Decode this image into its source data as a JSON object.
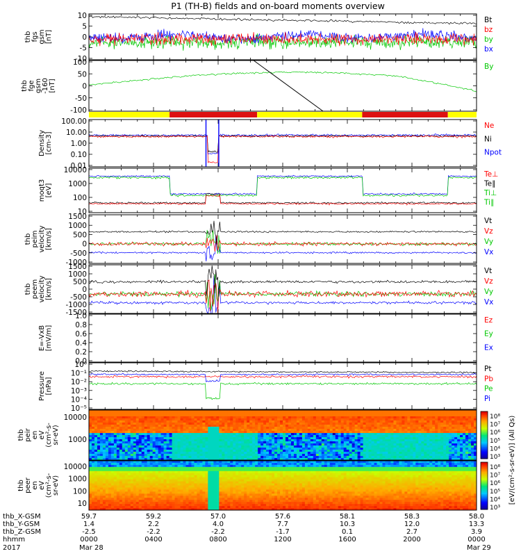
{
  "title": "P1 (TH-B) fields and on-board moments overview",
  "chart_data": {
    "type": "line",
    "title": "P1 (TH-B) fields and on-board moments overview",
    "x_time_labels": [
      "0000",
      "0400",
      "0800",
      "1200",
      "1600",
      "2000",
      "0000"
    ],
    "date_labels": [
      "Mar 28",
      "Mar 29"
    ],
    "year": "2017",
    "ephemeris": {
      "labels": [
        "thb_X-GSM",
        "thb_Y-GSM",
        "thb_Z-GSM",
        "hhmm",
        "2017"
      ],
      "x_gsm": [
        "59.7",
        "59.2",
        "57.0",
        "57.6",
        "58.1",
        "58.3",
        "58.0"
      ],
      "y_gsm": [
        "1.4",
        "2.2",
        "4.0",
        "7.7",
        "10.3",
        "12.0",
        "13.3"
      ],
      "z_gsm": [
        "-2.5",
        "-2.2",
        "-2.2",
        "-1.7",
        "0.1",
        "2.7",
        "3.9"
      ]
    },
    "panels": [
      {
        "id": "fgs",
        "ylabel": [
          "thb",
          "fgs",
          "gsm",
          "[nT]"
        ],
        "yticks": [
          "10",
          "5",
          "0",
          "-5",
          "-10"
        ],
        "legend": [
          "Bt",
          "bz",
          "by",
          "bx"
        ],
        "legend_colors": [
          "#000000",
          "#ff0000",
          "#00c800",
          "#0000ff"
        ]
      },
      {
        "id": "fge",
        "ylabel": [
          "thb",
          "fge",
          "gsm",
          "-160",
          "[nT]"
        ],
        "yticks": [
          "100",
          "50",
          "0",
          "-50",
          "-100"
        ],
        "legend": [
          "By"
        ],
        "legend_colors": [
          "#00c800"
        ]
      },
      {
        "id": "density",
        "ylabel": [
          "Density",
          "[cm-3]"
        ],
        "yticks": [
          "100.00",
          "10.00",
          "1.00",
          "0.10",
          "0.01"
        ],
        "legend": [
          "Ne",
          "Ni",
          "Npot"
        ],
        "legend_colors": [
          "#ff0000",
          "#000000",
          "#0000ff"
        ]
      },
      {
        "id": "temp",
        "ylabel": [
          "moqt3",
          "[eV]"
        ],
        "yticks": [
          "10000",
          "1000",
          "100",
          "10"
        ],
        "legend": [
          "Te⊥",
          "Te∥",
          "Ti⊥",
          "Ti∥"
        ],
        "legend_colors": [
          "#ff0000",
          "#000000",
          "#00c800",
          "#00c800"
        ]
      },
      {
        "id": "peim",
        "ylabel": [
          "thb",
          "peim",
          "velocity",
          "[km/s]"
        ],
        "yticks": [
          "1500",
          "1000",
          "500",
          "0",
          "-500",
          "-1000"
        ],
        "legend": [
          "Vt",
          "Vz",
          "Vy",
          "Vx"
        ],
        "legend_colors": [
          "#000000",
          "#ff0000",
          "#00c800",
          "#0000ff"
        ]
      },
      {
        "id": "peem",
        "ylabel": [
          "thb",
          "peem",
          "velocity",
          "[km/s]"
        ],
        "yticks": [
          "1500",
          "1000",
          "500",
          "0",
          "-500",
          "-1000",
          "-1500"
        ],
        "legend": [
          "Vt",
          "Vz",
          "Vy",
          "Vx"
        ],
        "legend_colors": [
          "#000000",
          "#ff0000",
          "#00c800",
          "#0000ff"
        ]
      },
      {
        "id": "efield",
        "ylabel": [
          "E=-VxB",
          "[mV/m]"
        ],
        "yticks": [
          "1.0",
          "0.8",
          "0.6",
          "0.4",
          "0.2",
          "0.0"
        ],
        "legend": [
          "Ez",
          "Ey",
          "Ex"
        ],
        "legend_colors": [
          "#ff0000",
          "#00c800",
          "#0000ff"
        ]
      },
      {
        "id": "pressure",
        "ylabel": [
          "Pressure",
          "[nPa]"
        ],
        "yticks": [
          "10⁰",
          "10⁻¹",
          "10⁻²",
          "10⁻³",
          "10⁻⁴",
          "10⁻⁵"
        ],
        "legend": [
          "Pt",
          "Pb",
          "Pe",
          "Pi"
        ],
        "legend_colors": [
          "#000000",
          "#ff0000",
          "#00c800",
          "#0000ff"
        ]
      },
      {
        "id": "peir",
        "ylabel": [
          "thb",
          "peir",
          "en",
          "eV",
          "(cm²-s-",
          "sr-eV)"
        ],
        "yticks": [
          "10000",
          "1000"
        ],
        "legend": [],
        "legend_colors": []
      },
      {
        "id": "peer",
        "ylabel": [
          "thb",
          "peer",
          "en",
          "eV",
          "(cm²-s-",
          "sr-eV)"
        ],
        "yticks": [
          "10000",
          "1000",
          "100",
          "10"
        ],
        "legend": [],
        "legend_colors": []
      }
    ],
    "colorbar": {
      "label": "[eV/(cm²-s-sr-eV)] (All Qs)",
      "peir_ticks": [
        "10⁸",
        "10⁷",
        "10⁶",
        "10⁵",
        "10⁴",
        "10³"
      ],
      "peer_ticks": [
        "10⁸",
        "10⁷",
        "10⁶",
        "10⁵",
        "10⁴",
        "10³"
      ]
    }
  }
}
